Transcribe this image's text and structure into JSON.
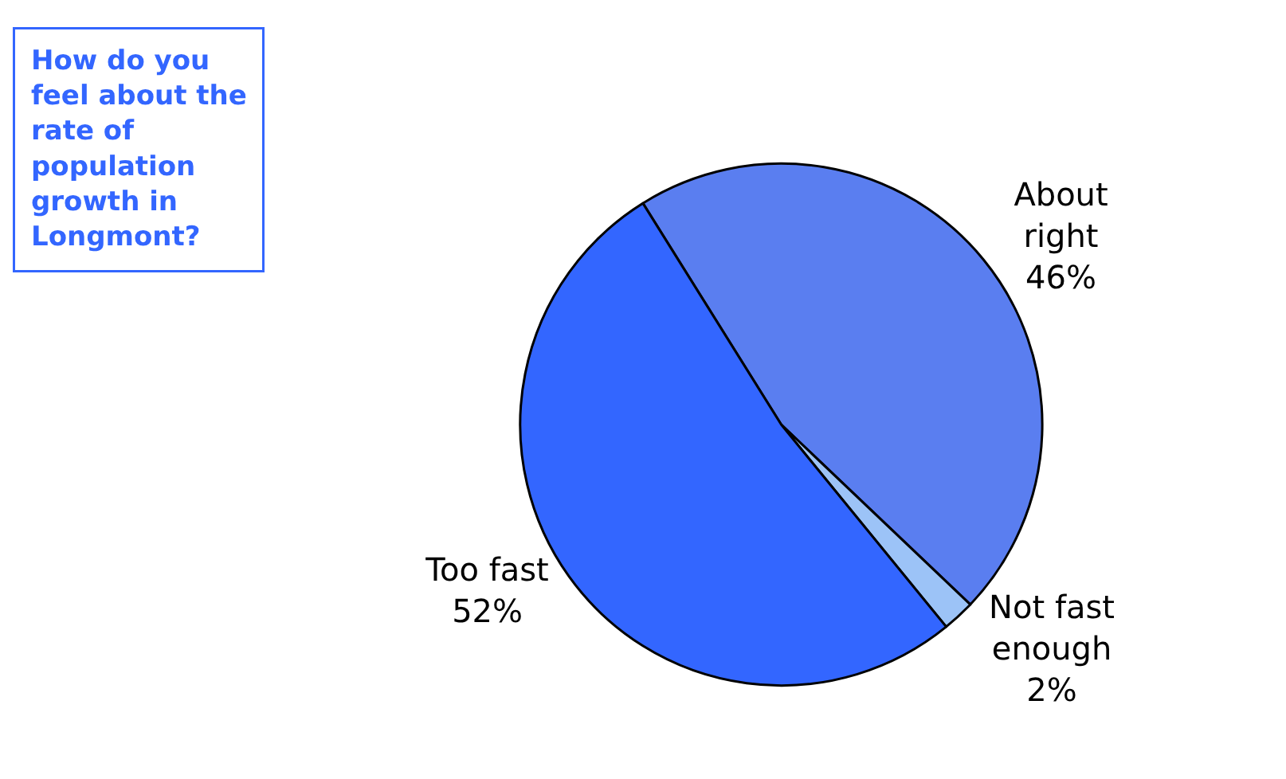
{
  "chart_data": {
    "type": "pie",
    "title": "How do you feel about the rate of population growth in Longmont?",
    "categories": [
      "About right",
      "Not fast enough",
      "Too fast"
    ],
    "values": [
      46,
      2,
      52
    ],
    "colors": [
      "#5a7ef0",
      "#9cc3f7",
      "#3366ff"
    ],
    "value_labels": [
      "46%",
      "2%",
      "52%"
    ],
    "legend": false
  }
}
